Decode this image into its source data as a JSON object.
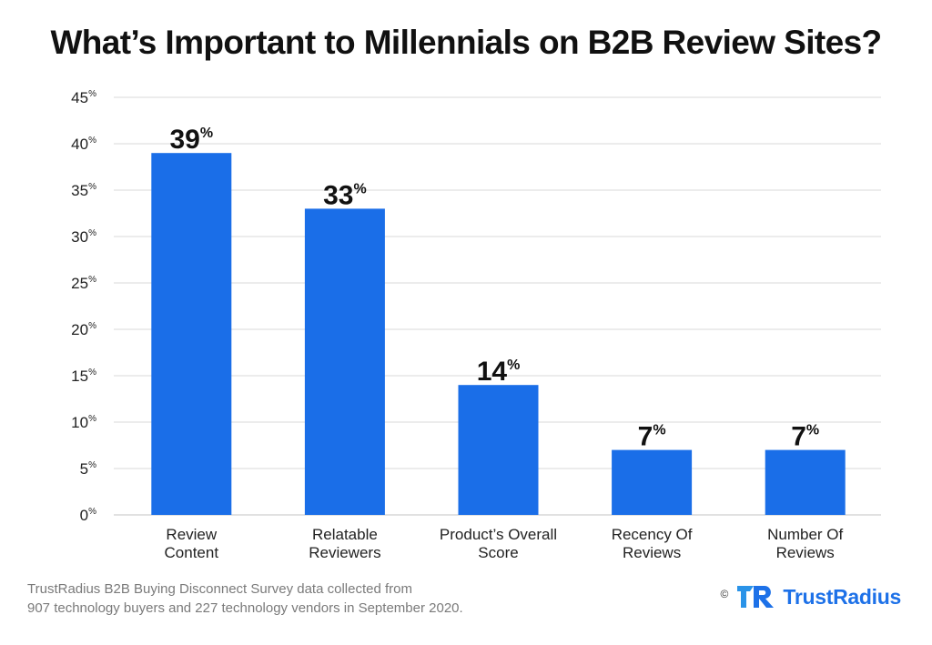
{
  "header": {
    "title": "What’s Important to Millennials on B2B Review Sites?"
  },
  "chart_data": {
    "type": "bar",
    "title": "What’s Important to Millennials on B2B Review Sites?",
    "categories": [
      [
        "Review",
        "Content"
      ],
      [
        "Relatable",
        "Reviewers"
      ],
      [
        "Product’s Overall",
        "Score"
      ],
      [
        "Recency Of",
        "Reviews"
      ],
      [
        "Number Of",
        "Reviews"
      ]
    ],
    "values": [
      39,
      33,
      14,
      7,
      7
    ],
    "value_suffix": "%",
    "ylim": [
      0,
      45
    ],
    "yticks": [
      0,
      5,
      10,
      15,
      20,
      25,
      30,
      35,
      40,
      45
    ],
    "ytick_suffix": "%",
    "grid": true,
    "xlabel": "",
    "ylabel": "",
    "bar_color": "#1a6ee8"
  },
  "footer": {
    "source_lines": [
      "TrustRadius B2B Buying Disconnect Survey data collected from",
      "907 technology buyers and 227 technology vendors in September 2020."
    ],
    "copyright_symbol": "©",
    "brand_name": "TrustRadius",
    "brand_color": "#1d71e8",
    "logo_icon": "trustradius-tr-logo-icon"
  }
}
